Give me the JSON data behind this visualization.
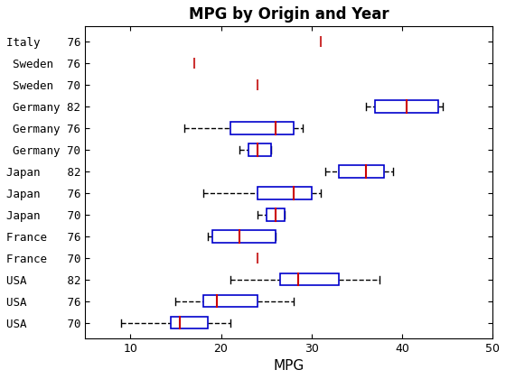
{
  "title": "MPG by Origin and Year",
  "xlabel": "MPG",
  "xlim": [
    5,
    50
  ],
  "boxes": [
    {
      "label": "Italy    76",
      "whislo": null,
      "q1": null,
      "med": 31.0,
      "q3": null,
      "whishi": null,
      "only_marker": true
    },
    {
      "label": "Sweden  76",
      "whislo": null,
      "q1": null,
      "med": 17.0,
      "q3": null,
      "whishi": null,
      "only_marker": true
    },
    {
      "label": "Sweden  70",
      "whislo": null,
      "q1": null,
      "med": 24.0,
      "q3": null,
      "whishi": null,
      "only_marker": true
    },
    {
      "label": "Germany 82",
      "whislo": 36.0,
      "q1": 37.0,
      "med": 40.5,
      "q3": 44.0,
      "whishi": 44.5,
      "only_marker": false
    },
    {
      "label": "Germany 76",
      "whislo": 16.0,
      "q1": 21.0,
      "med": 26.0,
      "q3": 28.0,
      "whishi": 29.0,
      "only_marker": false
    },
    {
      "label": "Germany 70",
      "whislo": 22.0,
      "q1": 23.0,
      "med": 24.0,
      "q3": 25.5,
      "whishi": 25.5,
      "only_marker": false
    },
    {
      "label": "Japan    82",
      "whislo": 31.5,
      "q1": 33.0,
      "med": 36.0,
      "q3": 38.0,
      "whishi": 39.0,
      "only_marker": false
    },
    {
      "label": "Japan    76",
      "whislo": 18.0,
      "q1": 24.0,
      "med": 28.0,
      "q3": 30.0,
      "whishi": 31.0,
      "only_marker": false
    },
    {
      "label": "Japan    70",
      "whislo": 24.0,
      "q1": 25.0,
      "med": 26.0,
      "q3": 27.0,
      "whishi": 27.0,
      "only_marker": false
    },
    {
      "label": "France   76",
      "whislo": 18.5,
      "q1": 19.0,
      "med": 22.0,
      "q3": 26.0,
      "whishi": 26.0,
      "only_marker": false
    },
    {
      "label": "France   70",
      "whislo": null,
      "q1": null,
      "med": 24.0,
      "q3": null,
      "whishi": null,
      "only_marker": true
    },
    {
      "label": "USA      82",
      "whislo": 21.0,
      "q1": 26.5,
      "med": 28.5,
      "q3": 33.0,
      "whishi": 37.5,
      "only_marker": false
    },
    {
      "label": "USA      76",
      "whislo": 15.0,
      "q1": 18.0,
      "med": 19.5,
      "q3": 24.0,
      "whishi": 28.0,
      "only_marker": false
    },
    {
      "label": "USA      70",
      "whislo": 9.0,
      "q1": 14.5,
      "med": 15.5,
      "q3": 18.5,
      "whishi": 21.0,
      "only_marker": false
    }
  ],
  "box_color": "#0000cc",
  "median_color": "#cc0000",
  "whisker_color": "#000000",
  "marker_color": "#cc3333",
  "figsize": [
    5.6,
    4.2
  ],
  "dpi": 100
}
